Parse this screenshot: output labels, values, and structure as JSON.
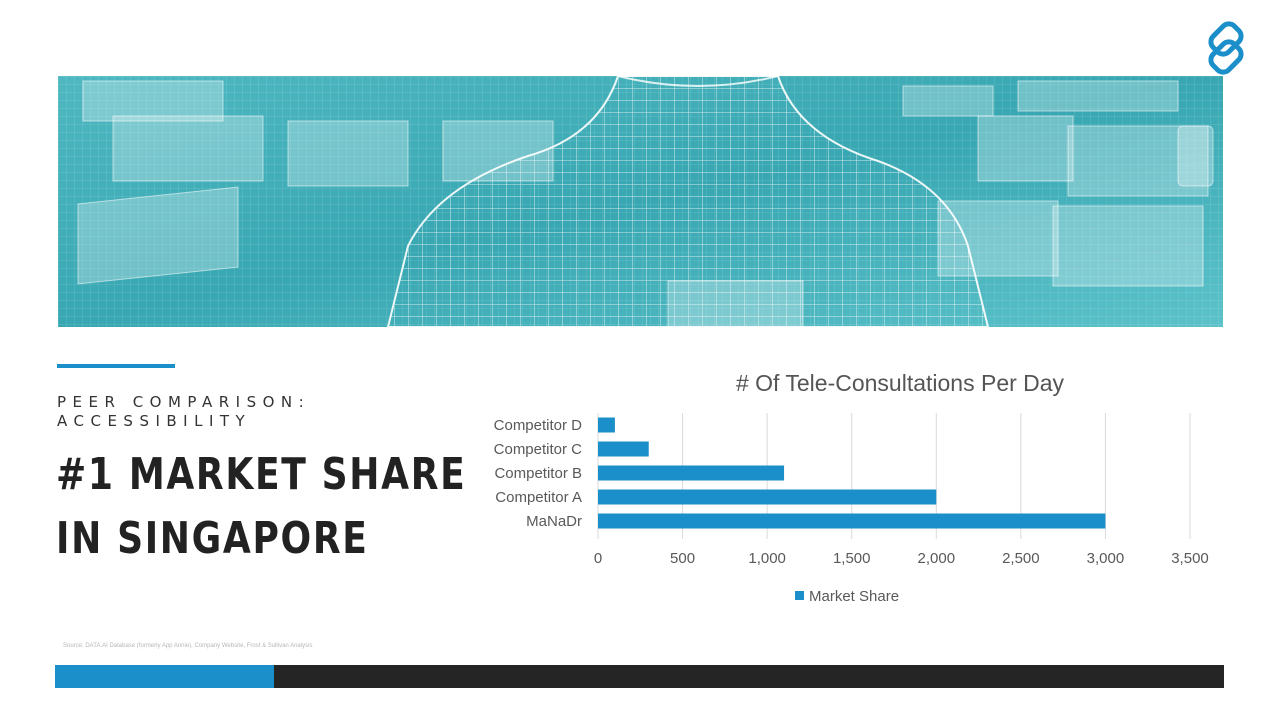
{
  "slide": {
    "eyebrow": "PEER COMPARISON: ACCESSIBILITY",
    "headline_line1": "#1 MARKET SHARE",
    "headline_line2": "IN SINGAPORE",
    "source": "Source: DATA.AI Database (formerly App Annie), Company Website, Frost & Sullivan Analysis",
    "colors": {
      "accent": "#1b8fc9",
      "dark_bar": "#252525",
      "banner_teal": "#4ab7c0",
      "text": "#222222"
    },
    "icons": [
      "logo-icon"
    ]
  },
  "chart_data": {
    "type": "bar",
    "orientation": "horizontal",
    "title": "# Of Tele-Consultations Per Day",
    "categories": [
      "MaNaDr",
      "Competitor A",
      "Competitor B",
      "Competitor C",
      "Competitor D"
    ],
    "series": [
      {
        "name": "Market Share",
        "values": [
          3000,
          2000,
          1100,
          300,
          100
        ],
        "color": "#1b8fc9"
      }
    ],
    "xlim": [
      0,
      3500
    ],
    "xticks": [
      0,
      500,
      1000,
      1500,
      2000,
      2500,
      3000,
      3500
    ],
    "xtick_labels": [
      "0",
      "500",
      "1,000",
      "1,500",
      "2,000",
      "2,500",
      "3,000",
      "3,500"
    ],
    "grid": true,
    "legend": "bottom"
  }
}
